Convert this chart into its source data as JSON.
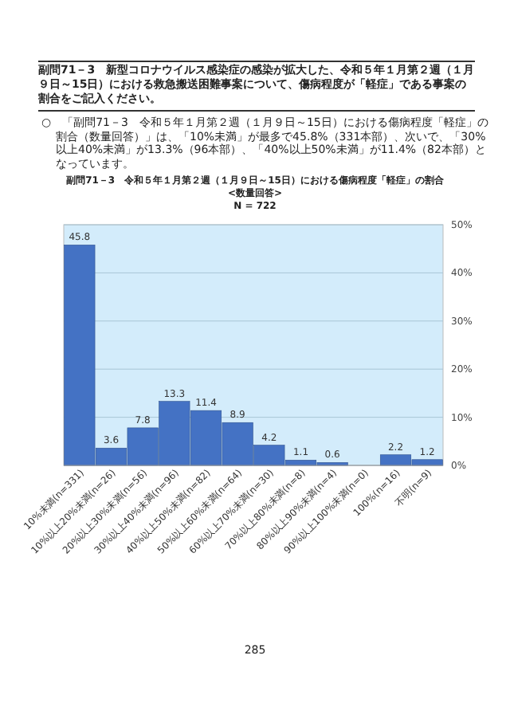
{
  "chart_data": {
    "type": "bar",
    "title": "副問71－3　令和５年１月第２週（１月９日～15日）における傷病程度「軽症」の割合",
    "subtitle": "<数量回答>",
    "annotations": [
      "副問71－3　新型コロナウイルス感染症の感染が拡大した、令和５年１月第２週（１月９日～15日）における救急搬送困難事案について、傷病程度が「軽症」である事案の割合をご記入ください。",
      "○　「副問71－3　令和５年１月第２週（１月９日～15日）における傷病程度「軽症」の割合（数量回答）」は、「10%未満」が最多で45.8%（331本部）、次いで、「30%以上40%未満」が13.3%（96本部）、「40%以上50%未満」が11.4%（82本部）となっています。",
      "N = 722",
      "285"
    ],
    "categories": [
      "10%未満(n=331)",
      "10%以上20%未満(n=26)",
      "20%以上30%未満(n=56)",
      "30%以上40%未満(n=96)",
      "40%以上50%未満(n=82)",
      "50%以上60%未満(n=64)",
      "60%以上70%未満(n=30)",
      "70%以上80%未満(n=8)",
      "80%以上90%未満(n=4)",
      "90%以上100%未満(n=0)",
      "100%(n=16)",
      "不明(n=9)"
    ],
    "values": [
      45.8,
      3.6,
      7.8,
      13.3,
      11.4,
      8.9,
      4.2,
      1.1,
      0.6,
      0,
      2.2,
      1.2
    ],
    "value_labels": [
      "45.8",
      "3.6",
      "7.8",
      "13.3",
      "11.4",
      "8.9",
      "4.2",
      "1.1",
      "0.6",
      null,
      "2.2",
      "1.2"
    ],
    "color": "#4472c4",
    "ylim": [
      0,
      50
    ],
    "yticks": [
      {
        "value": 0,
        "label": "0%"
      },
      {
        "value": 10,
        "label": "10%"
      },
      {
        "value": 20,
        "label": "20%"
      },
      {
        "value": 30,
        "label": "30%"
      },
      {
        "value": 40,
        "label": "40%"
      },
      {
        "value": 50,
        "label": "50%"
      }
    ],
    "grid": "y"
  }
}
